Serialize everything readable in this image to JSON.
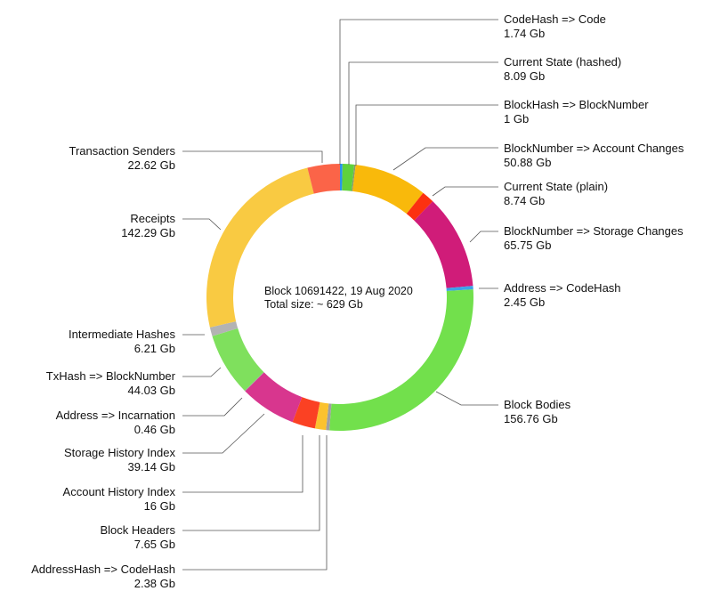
{
  "chart_data": {
    "type": "pie",
    "variant": "donut",
    "center_text": [
      "Block 10691422, 19 Aug 2020",
      "Total size: ~ 629 Gb"
    ],
    "unit": "Gb",
    "slices": [
      {
        "name": "CodeHash => Code",
        "value": 1.74,
        "label": "1.74 Gb",
        "color": "#2a93ec"
      },
      {
        "name": "Current State (hashed)",
        "value": 8.09,
        "label": "8.09 Gb",
        "color": "#5fd13c"
      },
      {
        "name": "BlockHash => BlockNumber",
        "value": 1,
        "label": "1 Gb",
        "color": "#8a9a6a"
      },
      {
        "name": "BlockNumber => Account Changes",
        "value": 50.88,
        "label": "50.88 Gb",
        "color": "#f9b90b"
      },
      {
        "name": "Current State (plain)",
        "value": 8.74,
        "label": "8.74 Gb",
        "color": "#fc3110"
      },
      {
        "name": "BlockNumber => Storage Changes",
        "value": 65.75,
        "label": "65.75 Gb",
        "color": "#d01c79"
      },
      {
        "name": "Address => CodeHash",
        "value": 2.45,
        "label": "2.45 Gb",
        "color": "#3da2e9"
      },
      {
        "name": "Block Bodies",
        "value": 156.76,
        "label": "156.76 Gb",
        "color": "#72e04c"
      },
      {
        "name": "AddressHash => CodeHash",
        "value": 2.38,
        "label": "2.38 Gb",
        "color": "#a0a0a0"
      },
      {
        "name": "Block Headers",
        "value": 7.65,
        "label": "7.65 Gb",
        "color": "#fbc22e"
      },
      {
        "name": "Account History Index",
        "value": 16,
        "label": "16 Gb",
        "color": "#fb4123"
      },
      {
        "name": "Storage History Index",
        "value": 39.14,
        "label": "39.14 Gb",
        "color": "#d8368e"
      },
      {
        "name": "Address => Incarnation",
        "value": 0.46,
        "label": "0.46 Gb",
        "color": "#9a9a9a"
      },
      {
        "name": "TxHash => BlockNumber",
        "value": 44.03,
        "label": "44.03 Gb",
        "color": "#7fe05d"
      },
      {
        "name": "Intermediate Hashes",
        "value": 6.21,
        "label": "6.21 Gb",
        "color": "#b3b3b3"
      },
      {
        "name": "Receipts",
        "value": 142.29,
        "label": "142.29 Gb",
        "color": "#f9ca42"
      },
      {
        "name": "Transaction Senders",
        "value": 22.62,
        "label": "22.62 Gb",
        "color": "#fb6448"
      }
    ]
  }
}
